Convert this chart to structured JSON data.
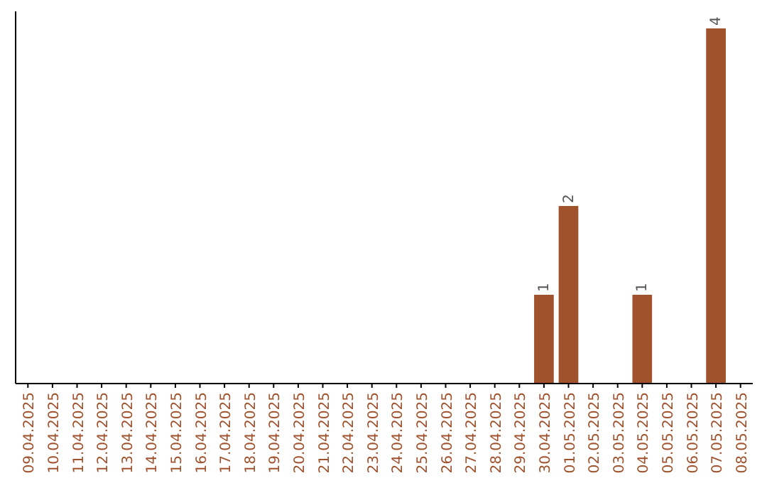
{
  "chart_data": {
    "type": "bar",
    "categories": [
      "09.04.2025",
      "10.04.2025",
      "11.04.2025",
      "12.04.2025",
      "13.04.2025",
      "14.04.2025",
      "15.04.2025",
      "16.04.2025",
      "17.04.2025",
      "18.04.2025",
      "19.04.2025",
      "20.04.2025",
      "21.04.2025",
      "22.04.2025",
      "23.04.2025",
      "24.04.2025",
      "25.04.2025",
      "26.04.2025",
      "27.04.2025",
      "28.04.2025",
      "29.04.2025",
      "30.04.2025",
      "01.05.2025",
      "02.05.2025",
      "03.05.2025",
      "04.05.2025",
      "05.05.2025",
      "06.05.2025",
      "07.05.2025",
      "08.05.2025"
    ],
    "values": [
      null,
      null,
      null,
      null,
      null,
      null,
      null,
      null,
      null,
      null,
      null,
      null,
      null,
      null,
      null,
      null,
      null,
      null,
      null,
      null,
      null,
      1,
      2,
      null,
      null,
      1,
      null,
      null,
      4,
      null
    ],
    "color": "#a0522d",
    "data_labels": true
  }
}
